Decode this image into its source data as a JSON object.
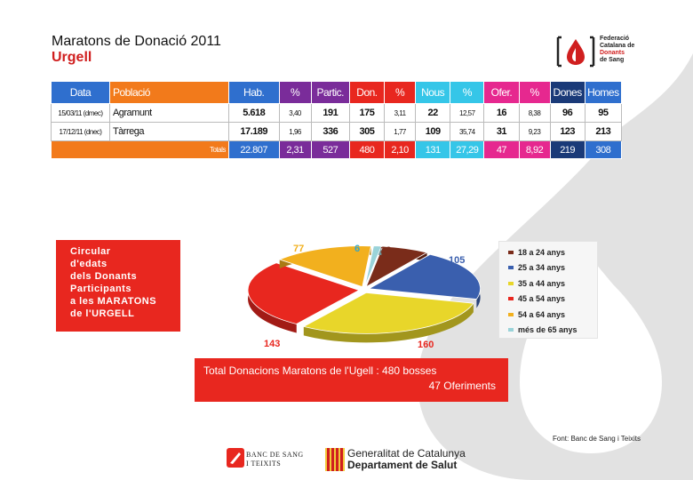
{
  "title": {
    "line1": "Maratons  de Donació 2011",
    "line2": "Urgell"
  },
  "logo_federacio": {
    "line1": "Federació",
    "line2": "Catalana de",
    "line3": "Donants",
    "line4": "de Sang"
  },
  "table": {
    "headers": [
      "Data",
      "Població",
      "Hab.",
      "%",
      "Partic.",
      "Don.",
      "%",
      "Nous",
      "%",
      "Ofer.",
      "%",
      "Dones",
      "Homes"
    ],
    "rows": [
      [
        "15/03/11 (dmec)",
        "Agramunt",
        "5.618",
        "3,40",
        "191",
        "175",
        "3,11",
        "22",
        "12,57",
        "16",
        "8,38",
        "96",
        "95"
      ],
      [
        "17/12/11 (dnec)",
        "Tàrrega",
        "17.189",
        "1,96",
        "336",
        "305",
        "1,77",
        "109",
        "35,74",
        "31",
        "9,23",
        "123",
        "213"
      ]
    ],
    "totals_label": "Totals",
    "totals": [
      "22.807",
      "2,31",
      "527",
      "480",
      "2,10",
      "131",
      "27,29",
      "47",
      "8,92",
      "219",
      "308"
    ]
  },
  "callout": {
    "lines": [
      "Circular",
      "d'edats",
      "dels Donants",
      "Participants",
      "a les MARATONS",
      "de l'URGELL"
    ]
  },
  "chart_data": {
    "type": "pie",
    "title": "",
    "categories": [
      "18 a 24 anys",
      "25 a 34 anys",
      "35 a 44 anys",
      "45 a 54 anys",
      "54 a 64 anys",
      "més de 65 anys"
    ],
    "values": [
      36,
      105,
      160,
      143,
      77,
      6
    ],
    "colors": [
      "#7a2c1a",
      "#3a5fae",
      "#e8d62a",
      "#e8271f",
      "#f2b01e",
      "#9ad3d9"
    ],
    "legend_position": "right"
  },
  "total_box": {
    "line1": "Total Donacions Maratons de l'Ugell : 480 bosses",
    "line2": "47 Oferiments"
  },
  "source": "Font: Banc de Sang i Teixits",
  "logo_banc": {
    "line1": "BANC DE SANG",
    "line2": "I TEIXITS"
  },
  "logo_gen": {
    "line1": "Generalitat de Catalunya",
    "line2": "Departament de Salut"
  }
}
